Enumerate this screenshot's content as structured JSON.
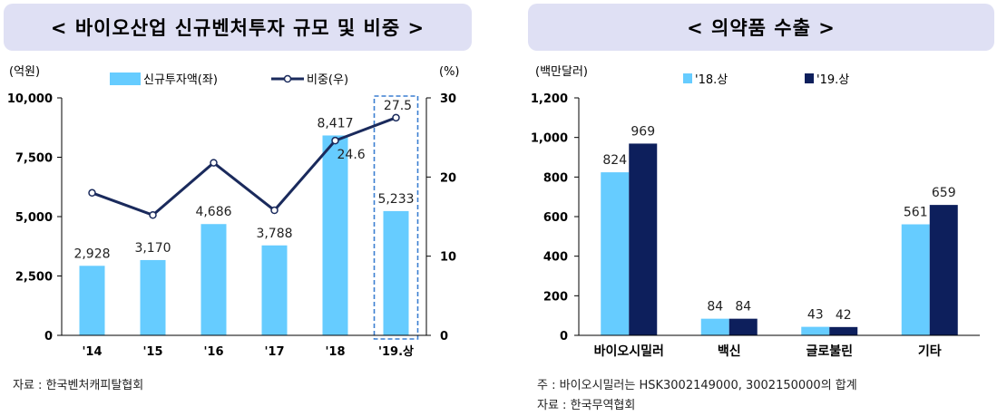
{
  "left": {
    "title": "< 바이오산업 신규벤처투자 규모 및 비중 >",
    "source": "자료 : 한국벤처캐피탈협회",
    "chart_data": {
      "type": "bar+line",
      "categories": [
        "'14",
        "'15",
        "'16",
        "'17",
        "'18",
        "'19.상"
      ],
      "series": [
        {
          "name": "신규투자액(좌)",
          "type": "bar",
          "axis": "left",
          "values": [
            2928,
            3170,
            4686,
            3788,
            8417,
            5233
          ],
          "labels": [
            "2,928",
            "3,170",
            "4,686",
            "3,788",
            "8,417",
            "5,233"
          ]
        },
        {
          "name": "비중(우)",
          "type": "line",
          "axis": "right",
          "values": [
            18.0,
            15.2,
            21.8,
            15.8,
            24.6,
            27.5
          ],
          "labels": [
            "",
            "",
            "",
            "",
            "24.6",
            "27.5"
          ]
        }
      ],
      "y_left": {
        "unit": "(억원)",
        "min": 0,
        "max": 10000,
        "ticks": [
          0,
          2500,
          5000,
          7500,
          10000
        ],
        "tick_labels": [
          "0",
          "2,500",
          "5,000",
          "7,500",
          "10,000"
        ]
      },
      "y_right": {
        "unit": "(%)",
        "min": 0,
        "max": 30,
        "ticks": [
          0,
          10,
          20,
          30
        ],
        "tick_labels": [
          "0",
          "10",
          "20",
          "30"
        ]
      },
      "highlight_category": "'19.상",
      "colors": {
        "bar": "#66ccff",
        "line": "#1a2a5c",
        "highlight": "#3b7fd1"
      }
    }
  },
  "right": {
    "title": "< 의약품 수출 >",
    "note": "주 : 바이오시밀러는 HSK3002149000, 3002150000의 합계",
    "source": "자료 : 한국무역협회",
    "chart_data": {
      "type": "bar",
      "categories": [
        "바이오시밀러",
        "백신",
        "글로불린",
        "기타"
      ],
      "series": [
        {
          "name": "'18.상",
          "values": [
            824,
            84,
            43,
            561
          ],
          "color": "#66ccff"
        },
        {
          "name": "'19.상",
          "values": [
            969,
            84,
            42,
            659
          ],
          "color": "#0d1f5c"
        }
      ],
      "y": {
        "unit": "(백만달러)",
        "min": 0,
        "max": 1200,
        "ticks": [
          0,
          200,
          400,
          600,
          800,
          1000,
          1200
        ],
        "tick_labels": [
          "0",
          "200",
          "400",
          "600",
          "800",
          "1,000",
          "1,200"
        ]
      }
    }
  }
}
